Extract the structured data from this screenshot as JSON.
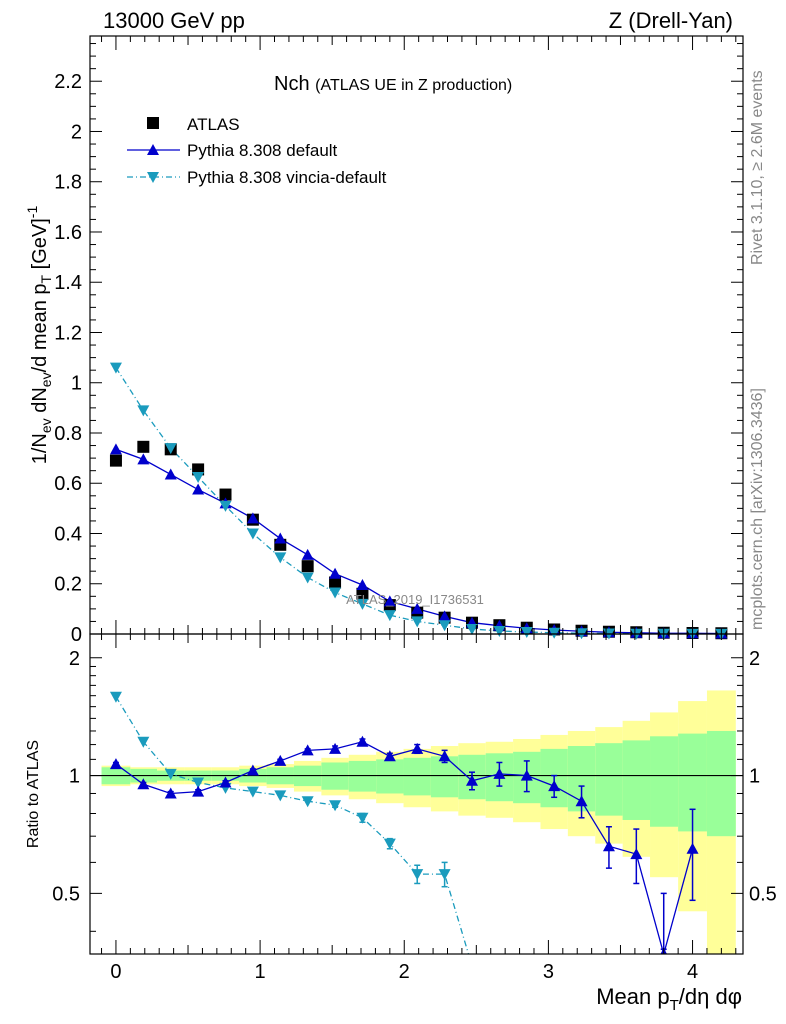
{
  "header": {
    "left": "13000 GeV pp",
    "right": "Z (Drell-Yan)"
  },
  "side_text": {
    "rivet": "Rivet 3.1.10, ≥ 2.6M events",
    "mcplots": "mcplots.cern.ch [arXiv:1306.3436]"
  },
  "watermark": "ATLAS_2019_I1736531",
  "chart_data": [
    {
      "type": "scatter",
      "panel": "main",
      "title": "Nch",
      "subtitle": "(ATLAS UE in Z production)",
      "ylabel": "1/N_ev dN_ev/d mean p_T [GeV]^-1",
      "xlim": [
        -0.18,
        4.35
      ],
      "ylim": [
        0,
        2.38
      ],
      "yticks": [
        0,
        0.2,
        0.4,
        0.6,
        0.8,
        1,
        1.2,
        1.4,
        1.6,
        1.8,
        2,
        2.2
      ],
      "yticklabels": [
        "0",
        "0.2",
        "0.4",
        "0.6",
        "0.8",
        "1",
        "1.2",
        "1.4",
        "1.6",
        "1.8",
        "2",
        "2.2"
      ],
      "legend_position": "top-left",
      "series": [
        {
          "name": "ATLAS",
          "color": "#000000",
          "marker": "square",
          "x": [
            0,
            0.19,
            0.38,
            0.57,
            0.76,
            0.95,
            1.14,
            1.33,
            1.52,
            1.71,
            1.9,
            2.09,
            2.28,
            2.47,
            2.66,
            2.85,
            3.04,
            3.23,
            3.42,
            3.61,
            3.8,
            4.0,
            4.2
          ],
          "y": [
            0.69,
            0.745,
            0.735,
            0.655,
            0.555,
            0.455,
            0.355,
            0.27,
            0.205,
            0.16,
            0.115,
            0.085,
            0.065,
            0.045,
            0.035,
            0.025,
            0.018,
            0.013,
            0.009,
            0.007,
            0.005,
            0.004,
            0.003
          ]
        },
        {
          "name": "Pythia 8.308 default",
          "color": "#0000cc",
          "marker": "triangle-up",
          "line": "solid",
          "x": [
            0,
            0.19,
            0.38,
            0.57,
            0.76,
            0.95,
            1.14,
            1.33,
            1.52,
            1.71,
            1.9,
            2.09,
            2.28,
            2.47,
            2.66,
            2.85,
            3.04,
            3.23,
            3.42,
            3.61,
            3.8,
            4.0,
            4.2
          ],
          "y": [
            0.735,
            0.695,
            0.635,
            0.575,
            0.52,
            0.46,
            0.38,
            0.315,
            0.24,
            0.195,
            0.13,
            0.1,
            0.07,
            0.045,
            0.033,
            0.023,
            0.016,
            0.011,
            0.007,
            0.005,
            0.003,
            0.003,
            0.002
          ]
        },
        {
          "name": "Pythia 8.308 vincia-default",
          "color": "#1a9bbd",
          "marker": "triangle-down",
          "line": "dash-dot",
          "x": [
            0,
            0.19,
            0.38,
            0.57,
            0.76,
            0.95,
            1.14,
            1.33,
            1.52,
            1.71,
            1.9,
            2.09,
            2.28,
            2.47,
            2.66,
            2.85,
            3.04,
            3.23,
            3.42,
            3.61,
            3.8,
            4.0,
            4.2
          ],
          "y": [
            1.06,
            0.89,
            0.74,
            0.625,
            0.51,
            0.4,
            0.305,
            0.225,
            0.165,
            0.12,
            0.075,
            0.05,
            0.035,
            0.02,
            0.012,
            0.008,
            0.005,
            0.003,
            0.002,
            0.001,
            0.001,
            0.0005,
            0.0003
          ]
        }
      ]
    },
    {
      "type": "line",
      "panel": "ratio",
      "ylabel": "Ratio to ATLAS",
      "xlabel": "Mean p_T/dη dφ",
      "xlim": [
        -0.18,
        4.35
      ],
      "ylim": [
        0.35,
        2.3
      ],
      "xticks": [
        0,
        1,
        2,
        3,
        4
      ],
      "xticklabels": [
        "0",
        "1",
        "2",
        "3",
        "4"
      ],
      "yticks": [
        0.5,
        1,
        2
      ],
      "yticklabels": [
        "0.5",
        "1",
        "2"
      ],
      "band_edges": [
        -0.1,
        0.1,
        0.285,
        0.475,
        0.665,
        0.855,
        1.045,
        1.235,
        1.425,
        1.615,
        1.805,
        1.995,
        2.185,
        2.375,
        2.565,
        2.755,
        2.945,
        3.135,
        3.325,
        3.515,
        3.705,
        3.9,
        4.1,
        4.3
      ],
      "band_stat": [
        0.05,
        0.04,
        0.03,
        0.03,
        0.03,
        0.04,
        0.05,
        0.06,
        0.08,
        0.09,
        0.1,
        0.11,
        0.12,
        0.13,
        0.14,
        0.15,
        0.17,
        0.19,
        0.21,
        0.23,
        0.26,
        0.28,
        0.3
      ],
      "band_total": [
        0.06,
        0.05,
        0.05,
        0.05,
        0.05,
        0.06,
        0.07,
        0.09,
        0.11,
        0.13,
        0.15,
        0.17,
        0.19,
        0.21,
        0.22,
        0.24,
        0.27,
        0.3,
        0.33,
        0.38,
        0.45,
        0.55,
        0.65
      ],
      "series": [
        {
          "name": "Pythia 8.308 default",
          "color": "#0000cc",
          "x": [
            0,
            0.19,
            0.38,
            0.57,
            0.76,
            0.95,
            1.14,
            1.33,
            1.52,
            1.71,
            1.9,
            2.09,
            2.28,
            2.47,
            2.66,
            2.85,
            3.04,
            3.23,
            3.42,
            3.61,
            3.8,
            4.0
          ],
          "y": [
            1.07,
            0.95,
            0.9,
            0.91,
            0.96,
            1.03,
            1.09,
            1.16,
            1.17,
            1.22,
            1.12,
            1.17,
            1.12,
            0.97,
            1.01,
            1.0,
            0.94,
            0.86,
            0.66,
            0.63,
            0.35,
            0.65
          ],
          "err": [
            0.01,
            0.01,
            0.01,
            0.01,
            0.01,
            0.01,
            0.01,
            0.01,
            0.02,
            0.02,
            0.02,
            0.03,
            0.04,
            0.05,
            0.07,
            0.09,
            0.06,
            0.08,
            0.08,
            0.1,
            0.15,
            0.17
          ]
        },
        {
          "name": "Pythia 8.308 vincia-default",
          "color": "#1a9bbd",
          "x": [
            0,
            0.19,
            0.38,
            0.57,
            0.76,
            0.95,
            1.14,
            1.33,
            1.52,
            1.71,
            1.9,
            2.09,
            2.28,
            2.5
          ],
          "y": [
            1.59,
            1.22,
            1.01,
            0.96,
            0.93,
            0.91,
            0.89,
            0.86,
            0.84,
            0.78,
            0.67,
            0.56,
            0.56,
            0.3
          ],
          "err": [
            0.0,
            0.0,
            0.0,
            0.0,
            0.0,
            0.0,
            0.0,
            0.0,
            0.01,
            0.02,
            0.02,
            0.03,
            0.04,
            0.0
          ]
        }
      ]
    }
  ]
}
